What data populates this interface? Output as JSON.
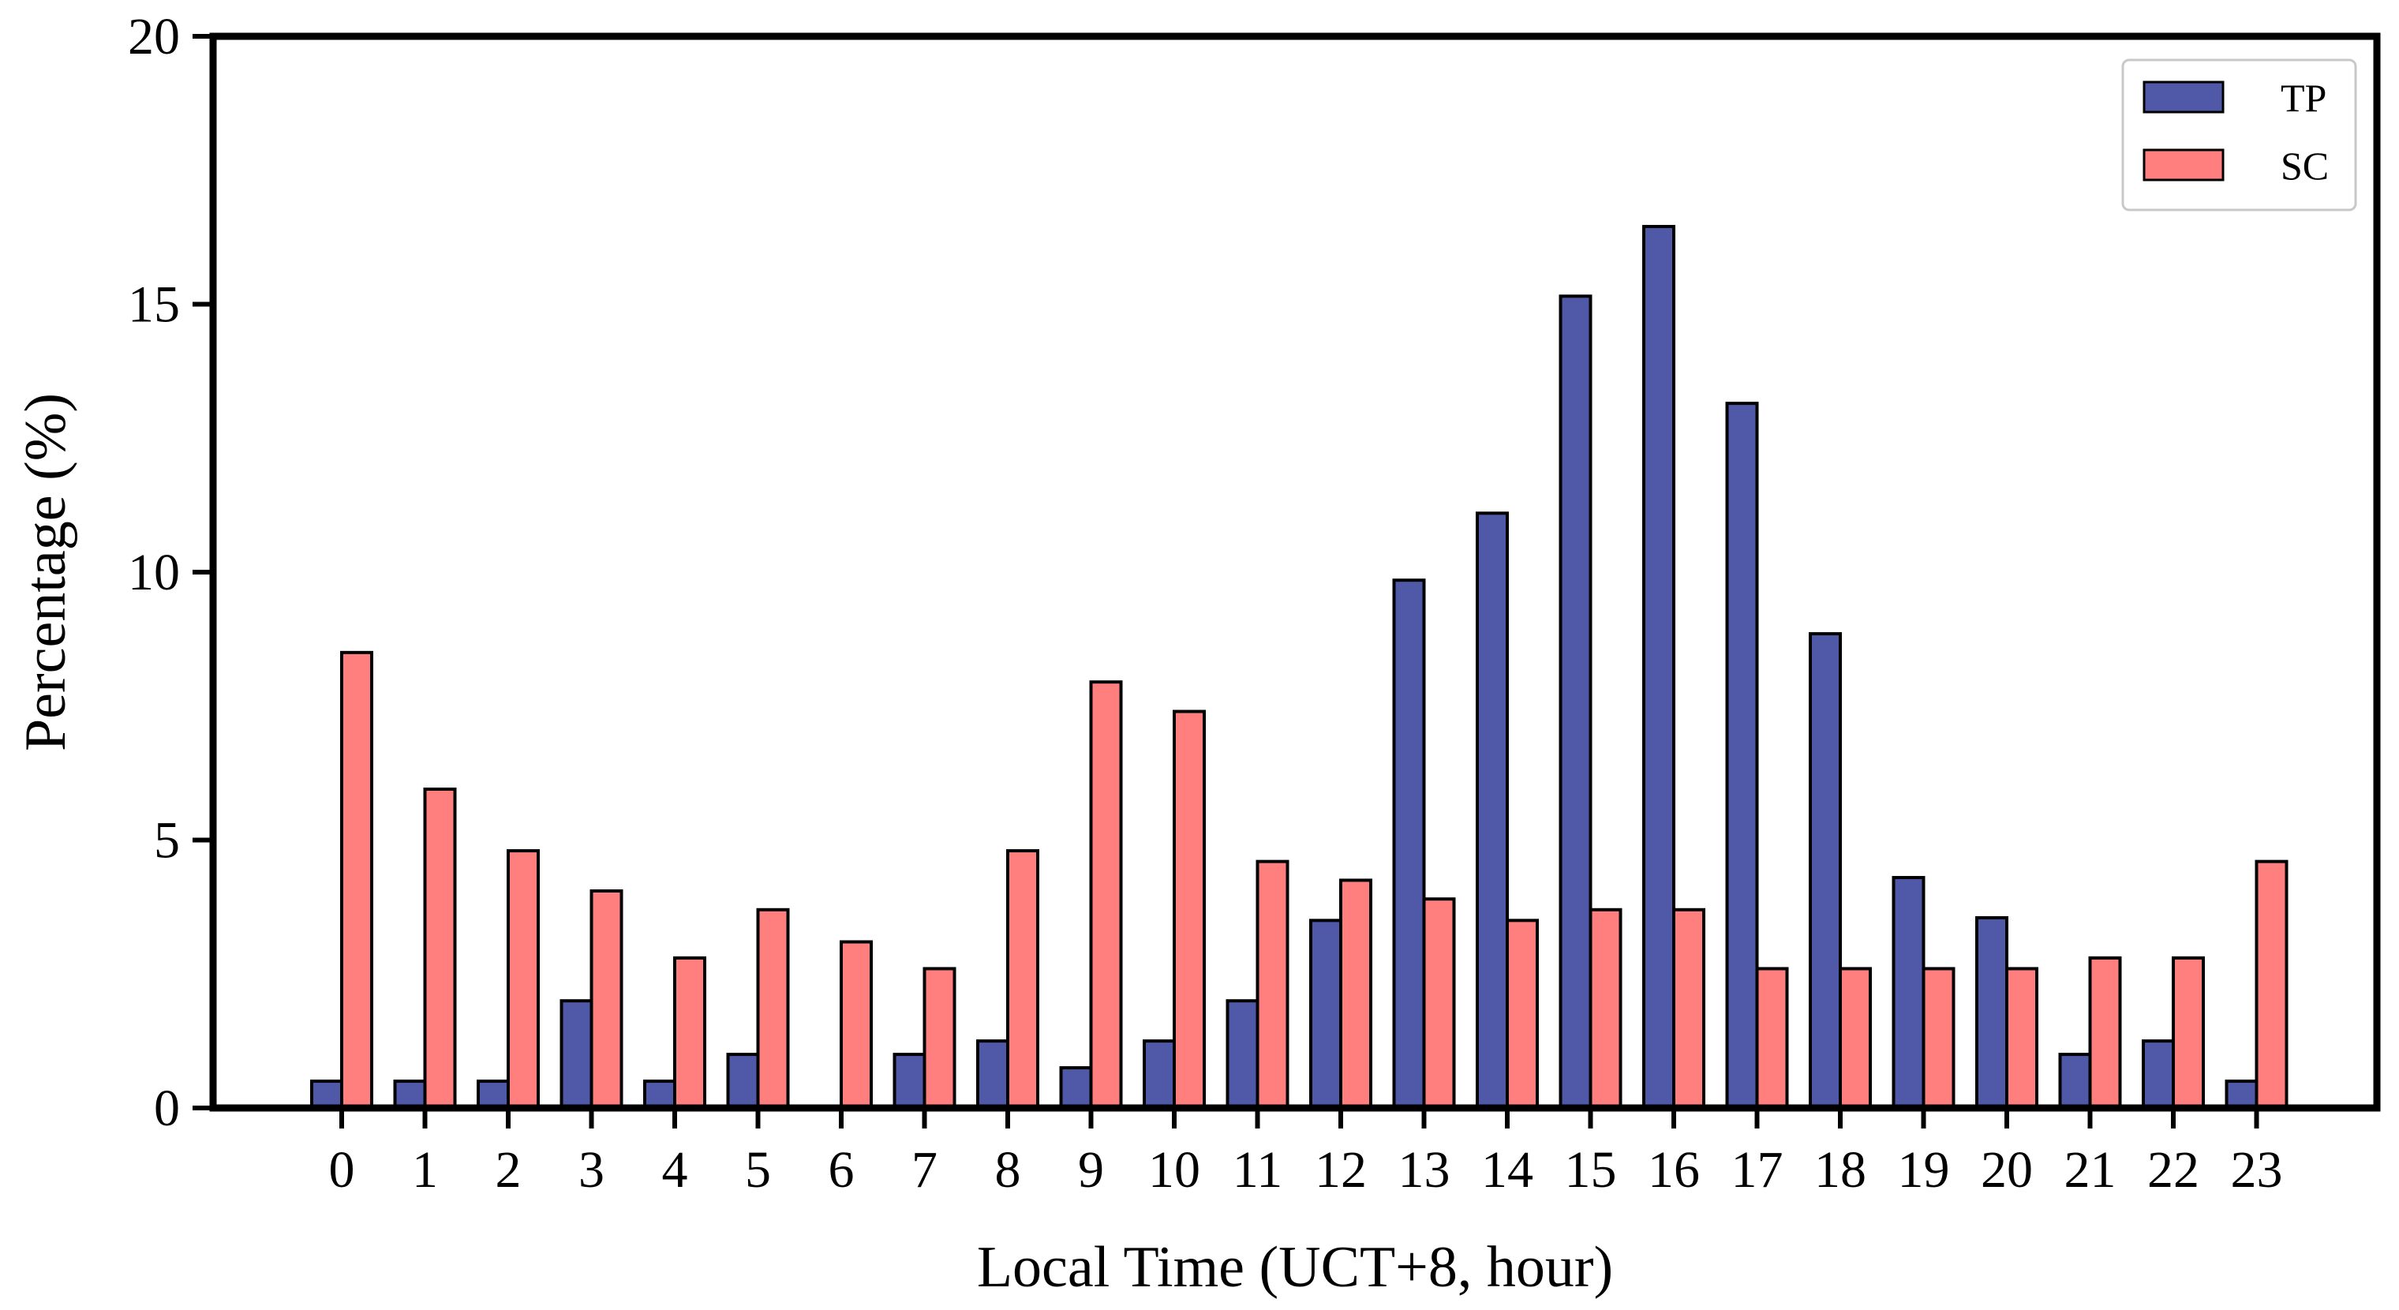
{
  "chart_data": {
    "type": "bar",
    "title": "",
    "xlabel": "Local Time (UCT+8, hour)",
    "ylabel": "Percentage (%)",
    "ylim": [
      0,
      20
    ],
    "yticks": [
      0,
      5,
      10,
      15,
      20
    ],
    "grid": false,
    "legend_position": "top-right",
    "categories": [
      "0",
      "1",
      "2",
      "3",
      "4",
      "5",
      "6",
      "7",
      "8",
      "9",
      "10",
      "11",
      "12",
      "13",
      "14",
      "15",
      "16",
      "17",
      "18",
      "19",
      "20",
      "21",
      "22",
      "23"
    ],
    "series": [
      {
        "name": "TP",
        "color": "#5059a8",
        "values": [
          0.5,
          0.5,
          0.5,
          2.0,
          0.5,
          1.0,
          0.0,
          1.0,
          1.25,
          0.75,
          1.25,
          2.0,
          3.5,
          9.85,
          11.1,
          15.15,
          16.45,
          13.15,
          8.85,
          4.3,
          3.55,
          1.0,
          1.25,
          0.5
        ]
      },
      {
        "name": "SC",
        "color": "#ff7f7f",
        "values": [
          8.5,
          5.95,
          4.8,
          4.05,
          2.8,
          3.7,
          3.1,
          2.6,
          4.8,
          7.95,
          7.4,
          4.6,
          4.25,
          3.9,
          3.5,
          3.7,
          3.7,
          2.6,
          2.6,
          2.6,
          2.6,
          2.8,
          2.8,
          4.6
        ]
      }
    ]
  }
}
